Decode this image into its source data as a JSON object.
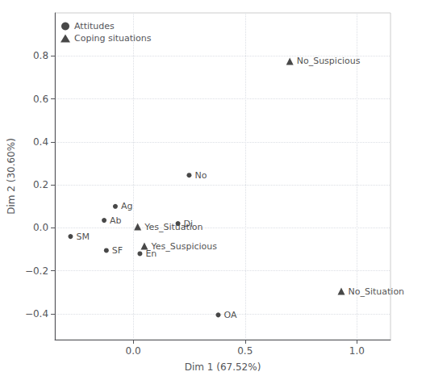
{
  "chart_data": {
    "type": "scatter",
    "xlabel": "Dim 1 (67.52%)",
    "ylabel": "Dim 2 (30.60%)",
    "series": [
      {
        "name": "Attitudes",
        "marker": "circle",
        "color": "#1a1a1a",
        "labels": [
          "Ag",
          "Ab",
          "SM",
          "SF",
          "No",
          "Di",
          "OA",
          "En"
        ],
        "x": [
          -0.08,
          -0.13,
          -0.28,
          -0.12,
          0.25,
          0.2,
          0.38,
          0.03
        ],
        "y": [
          0.1,
          0.035,
          -0.04,
          -0.105,
          0.245,
          0.02,
          -0.405,
          -0.12
        ]
      },
      {
        "name": "Coping situations",
        "marker": "triangle",
        "color": "#1a1a1a",
        "labels": [
          "Yes_Situation",
          "No_Suspicious",
          "Yes_Suspicious",
          "No_Situation"
        ],
        "x": [
          0.02,
          0.7,
          0.05,
          0.93
        ],
        "y": [
          0.005,
          0.775,
          -0.085,
          -0.295
        ]
      }
    ],
    "xlim": [
      -0.35,
      1.15
    ],
    "ylim": [
      -0.52,
      1.0
    ],
    "xticks": [
      {
        "value": 0.0,
        "label": "0.0"
      },
      0.5,
      {
        "value": 1.0,
        "label": "1.0"
      }
    ],
    "yticks": [
      {
        "value": -0.4,
        "label": "−0.4"
      },
      {
        "value": -0.2,
        "label": "−0.2"
      },
      {
        "value": 0.0,
        "label": "0.0"
      },
      0.2,
      0.4,
      0.6,
      0.8
    ],
    "grid": true,
    "legend": "top-left"
  }
}
